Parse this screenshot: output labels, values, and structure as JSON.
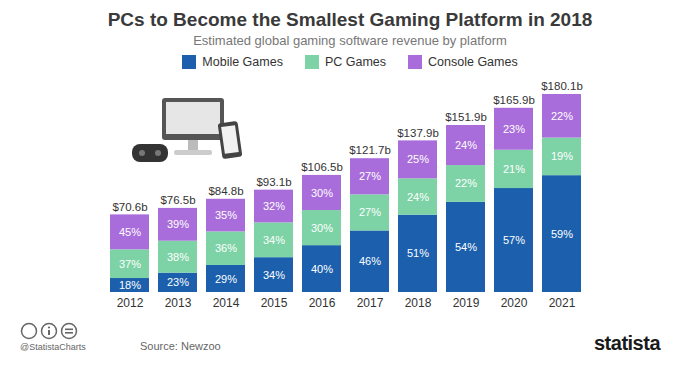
{
  "chart_data": {
    "type": "bar",
    "title": "PCs to Become the Smallest Gaming Platform in 2018",
    "subtitle": "Estimated global gaming software revenue by platform",
    "categories": [
      "2012",
      "2013",
      "2014",
      "2015",
      "2016",
      "2017",
      "2018",
      "2019",
      "2020",
      "2021"
    ],
    "series": [
      {
        "name": "Mobile Games",
        "color": "#1b5fad",
        "values": [
          18,
          23,
          29,
          34,
          40,
          46,
          51,
          54,
          57,
          59
        ],
        "value_labels": [
          "18%",
          "23%",
          "29%",
          "34%",
          "40%",
          "46%",
          "51%",
          "54%",
          "57%",
          "59%"
        ]
      },
      {
        "name": "PC Games",
        "color": "#7dd3a5",
        "values": [
          37,
          38,
          36,
          34,
          30,
          27,
          24,
          22,
          21,
          19
        ],
        "value_labels": [
          "37%",
          "38%",
          "36%",
          "34%",
          "30%",
          "27%",
          "24%",
          "22%",
          "21%",
          "19%"
        ]
      },
      {
        "name": "Console Games",
        "color": "#a96ddb",
        "values": [
          45,
          39,
          35,
          32,
          30,
          27,
          25,
          24,
          23,
          22
        ],
        "value_labels": [
          "45%",
          "39%",
          "35%",
          "32%",
          "30%",
          "27%",
          "25%",
          "24%",
          "23%",
          "22%"
        ]
      }
    ],
    "totals": [
      70.6,
      76.5,
      84.8,
      93.1,
      106.5,
      121.7,
      137.9,
      151.9,
      165.9,
      180.1
    ],
    "total_labels": [
      "$70.6b",
      "$76.5b",
      "$84.8b",
      "$93.1b",
      "$106.5b",
      "$121.7b",
      "$137.9b",
      "$151.9b",
      "$165.9b",
      "$180.1b"
    ],
    "ylim": [
      0,
      180.1
    ],
    "stacked": true,
    "data_labels": true,
    "legend": "top",
    "tick_labels": "x",
    "credit": "@StatistaCharts",
    "source": "Source: Newzoo",
    "brand": "statista"
  }
}
